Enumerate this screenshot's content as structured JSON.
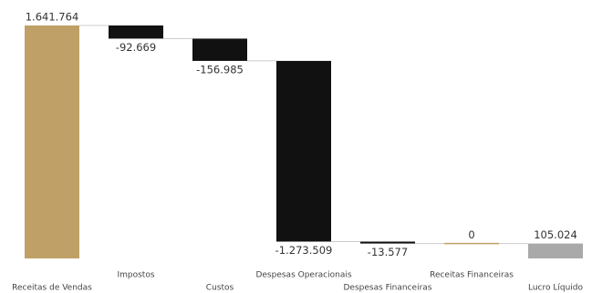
{
  "chart_data": {
    "type": "waterfall",
    "categories": [
      "Receitas de Vendas",
      "Impostos",
      "Custos",
      "Despesas Operacionais",
      "Despesas Financeiras",
      "Receitas Financeiras",
      "Lucro Líquido"
    ],
    "measure": [
      "absolute",
      "relative",
      "relative",
      "relative",
      "relative",
      "relative",
      "total"
    ],
    "values": [
      1641764,
      -92669,
      -156985,
      -1273509,
      -13577,
      0,
      105024
    ],
    "value_labels": [
      "1.641.764",
      "-92.669",
      "-156.985",
      "-1.273.509",
      "-13.577",
      "0",
      "105.024"
    ],
    "increase_color": "#bfa066",
    "decrease_color": "#111111",
    "total_color": "#a9a9a9"
  }
}
